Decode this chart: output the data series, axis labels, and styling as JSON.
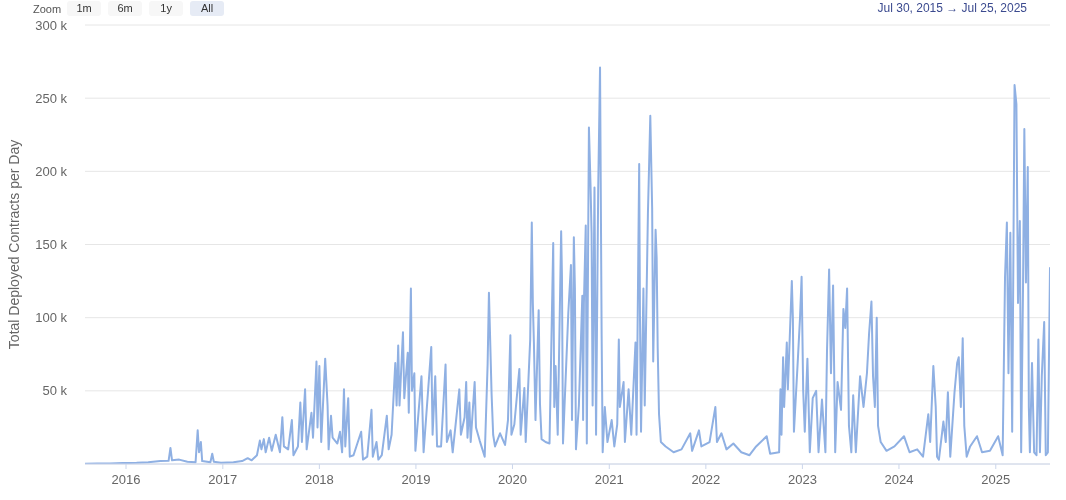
{
  "chart_data": {
    "type": "line",
    "ylabel": "Total Deployed Contracts per Day",
    "annotations": [
      "Zoom",
      "1m",
      "6m",
      "1y",
      "All",
      "Jul 30, 2015 → Jul 25, 2025"
    ],
    "color": "#8fb0e3",
    "grid": "y",
    "xlim": [
      "2015-07-30",
      "2025-07-25"
    ],
    "xticks": [
      "2016",
      "2017",
      "2018",
      "2019",
      "2020",
      "2021",
      "2022",
      "2023",
      "2024",
      "2025"
    ],
    "ylim": [
      0,
      300000
    ],
    "yticks": [
      {
        "value": 50000,
        "label": "50 k"
      },
      {
        "value": 100000,
        "label": "100 k"
      },
      {
        "value": 150000,
        "label": "150 k"
      },
      {
        "value": 200000,
        "label": "200 k"
      },
      {
        "value": 250000,
        "label": "250 k"
      },
      {
        "value": 300000,
        "label": "300 k"
      }
    ],
    "x": [
      "2015-07-30",
      "2015-09-15",
      "2015-11-01",
      "2015-12-20",
      "2016-02-10",
      "2016-03-25",
      "2016-05-10",
      "2016-06-10",
      "2016-06-17",
      "2016-06-23",
      "2016-07-20",
      "2016-08-20",
      "2016-09-20",
      "2016-09-28",
      "2016-10-03",
      "2016-10-10",
      "2016-10-15",
      "2016-11-15",
      "2016-11-22",
      "2016-11-28",
      "2016-12-25",
      "2017-02-10",
      "2017-03-15",
      "2017-04-05",
      "2017-04-20",
      "2017-05-10",
      "2017-05-21",
      "2017-05-27",
      "2017-06-05",
      "2017-06-12",
      "2017-06-25",
      "2017-07-05",
      "2017-07-20",
      "2017-08-05",
      "2017-08-14",
      "2017-08-20",
      "2017-09-05",
      "2017-09-19",
      "2017-09-25",
      "2017-10-12",
      "2017-10-21",
      "2017-10-27",
      "2017-11-08",
      "2017-11-14",
      "2017-12-02",
      "2017-12-08",
      "2017-12-21",
      "2017-12-25",
      "2018-01-01",
      "2018-01-08",
      "2018-01-23",
      "2018-02-01",
      "2018-02-05",
      "2018-02-14",
      "2018-02-20",
      "2018-03-10",
      "2018-03-20",
      "2018-03-28",
      "2018-04-04",
      "2018-04-09",
      "2018-04-20",
      "2018-04-26",
      "2018-05-10",
      "2018-06-08",
      "2018-06-15",
      "2018-07-01",
      "2018-07-17",
      "2018-07-22",
      "2018-08-05",
      "2018-08-12",
      "2018-08-25",
      "2018-09-13",
      "2018-09-20",
      "2018-10-01",
      "2018-10-15",
      "2018-10-20",
      "2018-10-26",
      "2018-10-31",
      "2018-11-13",
      "2018-11-18",
      "2018-12-01",
      "2018-12-05",
      "2018-12-13",
      "2018-12-17",
      "2018-12-26",
      "2018-12-30",
      "2019-01-22",
      "2019-01-30",
      "2019-02-28",
      "2019-03-05",
      "2019-03-15",
      "2019-03-22",
      "2019-04-06",
      "2019-04-23",
      "2019-04-28",
      "2019-05-12",
      "2019-05-20",
      "2019-06-14",
      "2019-06-20",
      "2019-07-04",
      "2019-07-10",
      "2019-07-15",
      "2019-07-22",
      "2019-07-27",
      "2019-08-11",
      "2019-08-16",
      "2019-08-30",
      "2019-09-18",
      "2019-09-29",
      "2019-10-04",
      "2019-10-14",
      "2019-10-20",
      "2019-10-27",
      "2019-11-15",
      "2019-12-04",
      "2019-12-15",
      "2019-12-24",
      "2019-12-28",
      "2020-01-08",
      "2020-01-27",
      "2020-02-01",
      "2020-02-15",
      "2020-02-20",
      "2020-03-08",
      "2020-03-14",
      "2020-03-18",
      "2020-03-22",
      "2020-03-28",
      "2020-04-09",
      "2020-04-14",
      "2020-04-20",
      "2020-05-05",
      "2020-05-20",
      "2020-06-03",
      "2020-06-07",
      "2020-06-12",
      "2020-06-20",
      "2020-07-03",
      "2020-07-06",
      "2020-07-10",
      "2020-07-30",
      "2020-08-09",
      "2020-08-13",
      "2020-08-20",
      "2020-08-24",
      "2020-08-28",
      "2020-09-08",
      "2020-09-21",
      "2020-09-24",
      "2020-09-27",
      "2020-10-04",
      "2020-10-08",
      "2020-10-16",
      "2020-10-22",
      "2020-10-26",
      "2020-10-30",
      "2020-11-06",
      "2020-11-09",
      "2020-11-12",
      "2020-11-20",
      "2020-11-27",
      "2020-12-03",
      "2020-12-07",
      "2020-12-15",
      "2020-12-25",
      "2021-01-10",
      "2021-01-20",
      "2021-01-31",
      "2021-02-06",
      "2021-02-10",
      "2021-02-24",
      "2021-03-01",
      "2021-03-15",
      "2021-03-25",
      "2021-04-10",
      "2021-04-14",
      "2021-04-24",
      "2021-04-27",
      "2021-05-01",
      "2021-05-10",
      "2021-05-15",
      "2021-05-27",
      "2021-06-05",
      "2021-06-12",
      "2021-06-16",
      "2021-06-25",
      "2021-06-29",
      "2021-07-03",
      "2021-07-08",
      "2021-07-15",
      "2021-08-02",
      "2021-09-01",
      "2021-10-01",
      "2021-11-03",
      "2021-11-10",
      "2021-12-06",
      "2021-12-15",
      "2022-01-15",
      "2022-02-06",
      "2022-02-12",
      "2022-03-01",
      "2022-03-20",
      "2022-04-15",
      "2022-05-15",
      "2022-06-15",
      "2022-07-10",
      "2022-08-19",
      "2022-09-01",
      "2022-10-05",
      "2022-10-10",
      "2022-10-14",
      "2022-10-20",
      "2022-10-24",
      "2022-11-03",
      "2022-11-07",
      "2022-11-22",
      "2022-11-26",
      "2022-11-30",
      "2022-12-15",
      "2022-12-23",
      "2022-12-29",
      "2023-01-04",
      "2023-01-10",
      "2023-01-20",
      "2023-01-29",
      "2023-02-09",
      "2023-02-22",
      "2023-03-03",
      "2023-03-16",
      "2023-03-29",
      "2023-04-04",
      "2023-04-12",
      "2023-04-19",
      "2023-04-27",
      "2023-05-05",
      "2023-05-14",
      "2023-05-27",
      "2023-06-05",
      "2023-06-12",
      "2023-06-19",
      "2023-06-26",
      "2023-07-05",
      "2023-07-12",
      "2023-07-22",
      "2023-08-07",
      "2023-08-20",
      "2023-09-02",
      "2023-09-10",
      "2023-09-19",
      "2023-09-25",
      "2023-10-02",
      "2023-10-09",
      "2023-10-14",
      "2023-10-24",
      "2023-11-15",
      "2023-12-15",
      "2024-01-20",
      "2024-02-10",
      "2024-03-10",
      "2024-04-01",
      "2024-04-21",
      "2024-04-28",
      "2024-05-10",
      "2024-05-19",
      "2024-05-24",
      "2024-05-31",
      "2024-06-17",
      "2024-06-26",
      "2024-07-04",
      "2024-07-13",
      "2024-07-29",
      "2024-08-08",
      "2024-08-14",
      "2024-08-22",
      "2024-08-29",
      "2024-09-04",
      "2024-09-13",
      "2024-09-26",
      "2024-10-22",
      "2024-11-10",
      "2024-12-10",
      "2025-01-10",
      "2025-01-27",
      "2025-02-05",
      "2025-02-12",
      "2025-02-18",
      "2025-02-25",
      "2025-03-04",
      "2025-03-08",
      "2025-03-13",
      "2025-03-20",
      "2025-03-26",
      "2025-04-02",
      "2025-04-07",
      "2025-04-14",
      "2025-04-19",
      "2025-04-25",
      "2025-05-02",
      "2025-05-06",
      "2025-05-10",
      "2025-05-18",
      "2025-05-26",
      "2025-06-04",
      "2025-06-11",
      "2025-06-17",
      "2025-06-24",
      "2025-07-03",
      "2025-07-09",
      "2025-07-17",
      "2025-07-25"
    ],
    "values": [
      200,
      300,
      400,
      600,
      800,
      1200,
      2000,
      2200,
      11000,
      2500,
      3000,
      1500,
      1200,
      23000,
      8000,
      15000,
      2000,
      1200,
      7000,
      1500,
      800,
      1200,
      2000,
      4000,
      2500,
      6000,
      16000,
      10000,
      17000,
      8000,
      18000,
      9000,
      20000,
      8000,
      32000,
      12000,
      10000,
      30000,
      6000,
      12000,
      42000,
      15000,
      51000,
      10000,
      35000,
      18000,
      70000,
      25000,
      67000,
      15000,
      72000,
      40000,
      10000,
      33000,
      18000,
      14000,
      22000,
      8000,
      51000,
      12000,
      45000,
      5000,
      6000,
      22000,
      3000,
      5000,
      37000,
      5000,
      15000,
      3000,
      6000,
      33000,
      10000,
      20000,
      69000,
      40000,
      81000,
      40000,
      90000,
      45000,
      76000,
      35000,
      120000,
      50000,
      62000,
      9000,
      60000,
      8000,
      80000,
      20000,
      60000,
      12000,
      12000,
      68000,
      15000,
      23000,
      8000,
      51000,
      20000,
      32000,
      56000,
      18000,
      42000,
      15000,
      56000,
      25000,
      16000,
      5000,
      68000,
      117000,
      48000,
      20000,
      12000,
      21000,
      13000,
      30000,
      88000,
      20000,
      27000,
      65000,
      20000,
      52000,
      15000,
      85000,
      165000,
      110000,
      83000,
      30000,
      105000,
      41000,
      17000,
      15000,
      14000,
      151000,
      39000,
      67000,
      20000,
      159000,
      129000,
      14000,
      103000,
      136000,
      30000,
      155000,
      120000,
      10000,
      40000,
      115000,
      30000,
      110000,
      163000,
      14000,
      230000,
      191000,
      158000,
      40000,
      189000,
      105000,
      20000,
      187000,
      271000,
      89000,
      8000,
      39000,
      15000,
      30000,
      12000,
      27000,
      85000,
      39000,
      56000,
      15000,
      51000,
      20000,
      83000,
      20000,
      205000,
      101000,
      22000,
      120000,
      40000,
      171000,
      238000,
      175000,
      70000,
      160000,
      141000,
      79000,
      34000,
      15000,
      12000,
      8000,
      10000,
      21000,
      9000,
      23000,
      12000,
      15000,
      39000,
      15000,
      21000,
      10000,
      14000,
      8000,
      6000,
      12000,
      19000,
      7000,
      8000,
      51000,
      20000,
      73000,
      39000,
      83000,
      51000,
      125000,
      100000,
      22000,
      72000,
      100000,
      128000,
      50000,
      22000,
      72000,
      8000,
      45000,
      50000,
      8000,
      44000,
      8000,
      77000,
      133000,
      62000,
      122000,
      8000,
      56000,
      37000,
      106000,
      93000,
      120000,
      26000,
      8000,
      47000,
      8000,
      60000,
      39000,
      62000,
      89000,
      111000,
      60000,
      39000,
      100000,
      26000,
      15000,
      9000,
      12000,
      19000,
      8000,
      10000,
      5000,
      34000,
      15000,
      67000,
      39000,
      5000,
      3000,
      29000,
      15000,
      49000,
      5000,
      49000,
      69000,
      73000,
      39000,
      86000,
      26000,
      5000,
      12000,
      19000,
      8000,
      9000,
      19000,
      6000,
      128000,
      165000,
      62000,
      158000,
      22000,
      126000,
      259000,
      246000,
      110000,
      166000,
      8000,
      120000,
      229000,
      124000,
      203000,
      39000,
      8000,
      69000,
      8000,
      6000,
      85000,
      8000,
      60000,
      97000,
      6000,
      8000,
      134000
    ]
  }
}
